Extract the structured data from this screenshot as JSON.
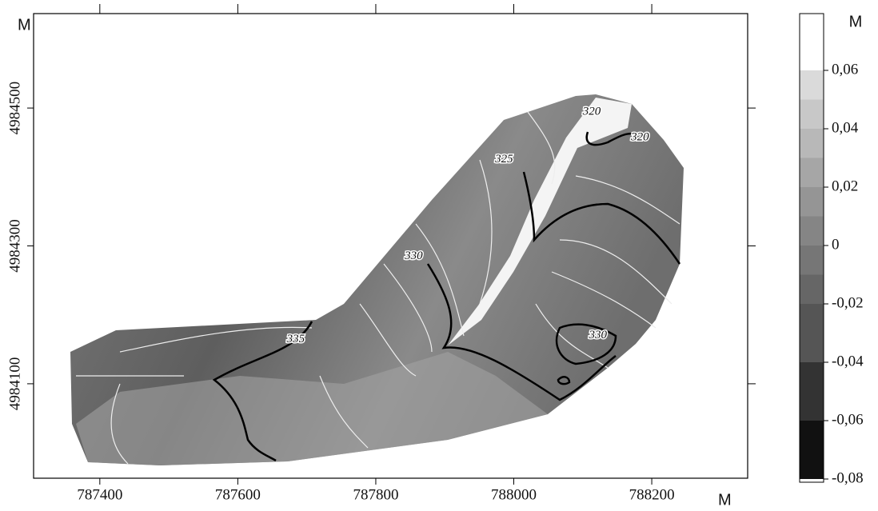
{
  "chart_data": {
    "type": "map",
    "x_unit": "M",
    "y_unit": "M",
    "xlim": [
      787304,
      788339
    ],
    "ylim": [
      4983963,
      4984637
    ],
    "xticks": [
      787400,
      787600,
      787800,
      788000,
      788200
    ],
    "yticks": [
      4984100,
      4984300,
      4984500
    ],
    "contour_labels": [
      {
        "text": "320",
        "x": 788113,
        "y": 4984494
      },
      {
        "text": "320",
        "x": 788183,
        "y": 4984457
      },
      {
        "text": "325",
        "x": 787986,
        "y": 4984425
      },
      {
        "text": "330",
        "x": 787855,
        "y": 4984285
      },
      {
        "text": "330",
        "x": 788122,
        "y": 4984170
      },
      {
        "text": "335",
        "x": 787684,
        "y": 4984164
      }
    ],
    "colorbar": {
      "title": "M",
      "lim": [
        -0.08,
        0.08
      ],
      "levels": [
        -0.08,
        -0.06,
        -0.04,
        -0.02,
        -0.01,
        0,
        0.01,
        0.02,
        0.03,
        0.04,
        0.05,
        0.06,
        0.08
      ],
      "colors": [
        "#111111",
        "#333333",
        "#555555",
        "#666666",
        "#767676",
        "#858585",
        "#959595",
        "#a6a6a6",
        "#b8b8b8",
        "#c8c8c8",
        "#dadada",
        "#ffffff"
      ],
      "ticks": [
        {
          "value": -0.08,
          "label": "-0,08"
        },
        {
          "value": -0.06,
          "label": "-0,06"
        },
        {
          "value": -0.04,
          "label": "-0,04"
        },
        {
          "value": -0.02,
          "label": "-0,02"
        },
        0,
        {
          "value": 0.02,
          "label": "0,02"
        },
        {
          "value": 0.04,
          "label": "0,04"
        },
        {
          "value": 0.06,
          "label": "0,06"
        }
      ]
    }
  }
}
